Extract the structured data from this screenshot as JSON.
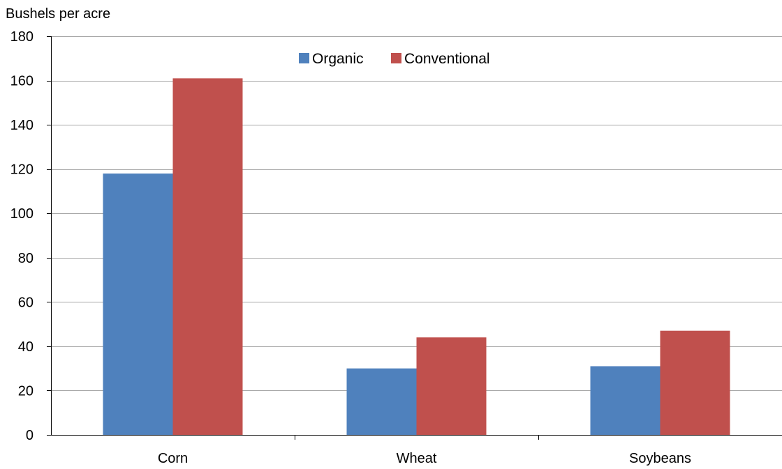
{
  "chart_data": {
    "type": "bar",
    "title": "",
    "xlabel": "",
    "ylabel": "Bushels per acre",
    "ylim": [
      0,
      180
    ],
    "yticks": [
      0,
      20,
      40,
      60,
      80,
      100,
      120,
      140,
      160,
      180
    ],
    "categories": [
      "Corn",
      "Wheat",
      "Soybeans"
    ],
    "series": [
      {
        "name": "Organic",
        "color": "#4f81bd",
        "values": [
          118,
          30,
          31
        ]
      },
      {
        "name": "Conventional",
        "color": "#c0504d",
        "values": [
          161,
          44,
          47
        ]
      }
    ],
    "grid": true,
    "legend_position": "top-center"
  }
}
